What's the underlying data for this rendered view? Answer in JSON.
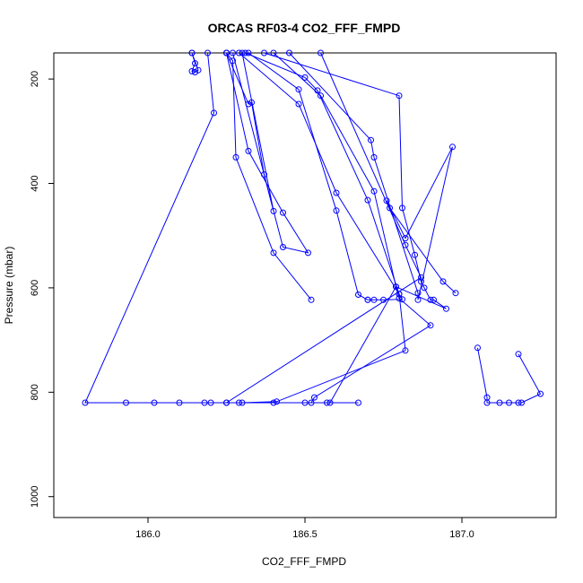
{
  "chart_data": {
    "type": "line",
    "title": "ORCAS RF03-4 CO2_FFF_FMPD",
    "xlabel": "CO2_FFF_FMPD",
    "ylabel": "Pressure (mbar)",
    "xlim": [
      185.7,
      187.3
    ],
    "ylim": [
      1040,
      150
    ],
    "y_reversed": true,
    "grid": false,
    "x_ticks": [
      186.0,
      186.5,
      187.0
    ],
    "x_tick_labels": [
      "186.0",
      "186.5",
      "187.0"
    ],
    "y_ticks": [
      200,
      400,
      600,
      800,
      1000
    ],
    "y_tick_labels": [
      "200",
      "400",
      "600",
      "800",
      "1000"
    ],
    "series_color": "#0000ff",
    "series": [
      {
        "points": [
          [
            186.14,
            150
          ],
          [
            186.15,
            170
          ],
          [
            186.14,
            185
          ],
          [
            186.15,
            187
          ],
          [
            186.16,
            183
          ],
          [
            186.14,
            150
          ]
        ]
      },
      {
        "points": [
          [
            186.19,
            150
          ],
          [
            186.21,
            265
          ],
          [
            185.8,
            820
          ],
          [
            185.93,
            820
          ],
          [
            186.02,
            820
          ],
          [
            186.1,
            820
          ],
          [
            186.18,
            820
          ],
          [
            186.2,
            820
          ],
          [
            186.25,
            820
          ],
          [
            186.29,
            820
          ],
          [
            186.4,
            820
          ],
          [
            186.5,
            820
          ],
          [
            186.57,
            820
          ],
          [
            186.67,
            820
          ]
        ]
      },
      {
        "points": [
          [
            186.25,
            150
          ],
          [
            186.27,
            165
          ],
          [
            186.28,
            350
          ],
          [
            186.4,
            533
          ],
          [
            186.52,
            623
          ]
        ]
      },
      {
        "points": [
          [
            186.25,
            150
          ],
          [
            186.32,
            248
          ],
          [
            186.33,
            245
          ],
          [
            186.37,
            383
          ],
          [
            186.43,
            522
          ],
          [
            186.51,
            533
          ],
          [
            186.43,
            456
          ],
          [
            186.32,
            338
          ],
          [
            186.25,
            150
          ]
        ]
      },
      {
        "points": [
          [
            186.27,
            150
          ],
          [
            186.4,
            453
          ],
          [
            186.3,
            150
          ]
        ]
      },
      {
        "points": [
          [
            186.29,
            150
          ],
          [
            186.48,
            248
          ],
          [
            186.6,
            418
          ],
          [
            186.8,
            612
          ],
          [
            186.81,
            622
          ],
          [
            186.75,
            623
          ],
          [
            186.72,
            623
          ],
          [
            186.7,
            623
          ]
        ]
      },
      {
        "points": [
          [
            186.31,
            150
          ],
          [
            186.5,
            197
          ],
          [
            186.54,
            222
          ],
          [
            186.7,
            432
          ],
          [
            186.8,
            612
          ],
          [
            186.82,
            720
          ],
          [
            186.41,
            818
          ],
          [
            186.3,
            820
          ]
        ]
      },
      {
        "points": [
          [
            186.32,
            150
          ],
          [
            186.48,
            220
          ],
          [
            186.6,
            452
          ],
          [
            186.67,
            613
          ],
          [
            186.7,
            623
          ]
        ]
      },
      {
        "points": [
          [
            186.37,
            150
          ],
          [
            186.8,
            232
          ],
          [
            186.81,
            447
          ],
          [
            186.85,
            537
          ],
          [
            186.87,
            588
          ],
          [
            186.88,
            600
          ],
          [
            186.9,
            623
          ],
          [
            186.91,
            623
          ],
          [
            186.95,
            640
          ],
          [
            186.79,
            598
          ],
          [
            186.8,
            620
          ],
          [
            186.9,
            672
          ],
          [
            186.53,
            810
          ],
          [
            186.52,
            820
          ]
        ]
      },
      {
        "points": [
          [
            186.4,
            150
          ],
          [
            186.55,
            232
          ],
          [
            186.72,
            415
          ],
          [
            186.79,
            598
          ],
          [
            186.58,
            820
          ]
        ]
      },
      {
        "points": [
          [
            186.45,
            150
          ],
          [
            186.71,
            317
          ],
          [
            186.72,
            350
          ],
          [
            186.86,
            610
          ],
          [
            186.86,
            623
          ],
          [
            186.97,
            330
          ],
          [
            186.82,
            505
          ],
          [
            186.76,
            433
          ],
          [
            186.77,
            447
          ],
          [
            186.94,
            588
          ],
          [
            186.98,
            610
          ]
        ]
      },
      {
        "points": [
          [
            186.55,
            150
          ],
          [
            186.82,
            518
          ],
          [
            186.87,
            580
          ],
          [
            186.25,
            820
          ]
        ]
      },
      {
        "points": [
          [
            187.05,
            715
          ],
          [
            187.08,
            810
          ],
          [
            187.08,
            820
          ],
          [
            187.12,
            820
          ],
          [
            187.15,
            820
          ],
          [
            187.18,
            820
          ],
          [
            187.19,
            820
          ],
          [
            187.25,
            803
          ],
          [
            187.18,
            727
          ]
        ]
      }
    ]
  }
}
